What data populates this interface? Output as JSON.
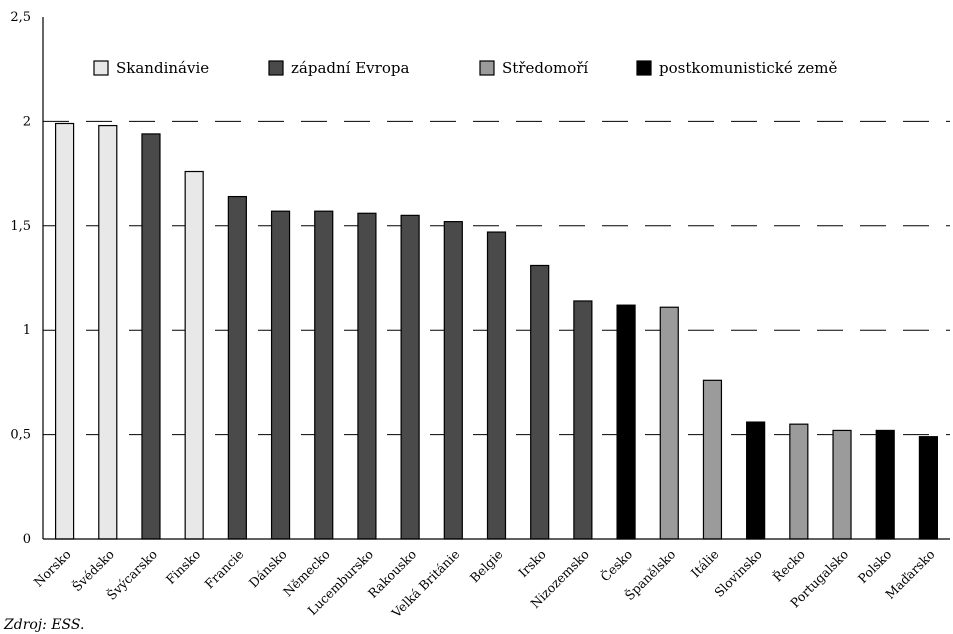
{
  "chart_data": {
    "type": "bar",
    "title": "",
    "xlabel": "",
    "ylabel": "",
    "ylim": [
      0,
      2.5
    ],
    "yticks": [
      {
        "value": 0,
        "label": "0"
      },
      {
        "value": 0.5,
        "label": "0,5"
      },
      {
        "value": 1,
        "label": "1"
      },
      {
        "value": 1.5,
        "label": "1,5"
      },
      {
        "value": 2,
        "label": "2"
      },
      {
        "value": 2.5,
        "label": "2,5"
      }
    ],
    "grid": "horizontal dashed",
    "legend_position": "top",
    "groups": [
      {
        "key": "scand",
        "name": "Skandinávie",
        "color": "#e8e8e8"
      },
      {
        "key": "west",
        "name": "západní Evropa",
        "color": "#4a4a4a"
      },
      {
        "key": "med",
        "name": "Středomoří",
        "color": "#9b9b9b"
      },
      {
        "key": "post",
        "name": "postkomunistické země",
        "color": "#000000"
      }
    ],
    "categories": [
      "Norsko",
      "Švédsko",
      "Švýcarsko",
      "Finsko",
      "Francie",
      "Dánsko",
      "Německo",
      "Lucembursko",
      "Rakousko",
      "Velká Británie",
      "Belgie",
      "Irsko",
      "Nizozemsko",
      "Česko",
      "Španělsko",
      "Itálie",
      "Slovinsko",
      "Řecko",
      "Portugalsko",
      "Polsko",
      "Maďarsko"
    ],
    "values": [
      1.99,
      1.98,
      1.94,
      1.76,
      1.64,
      1.57,
      1.57,
      1.56,
      1.55,
      1.52,
      1.47,
      1.31,
      1.14,
      1.12,
      1.11,
      0.76,
      0.56,
      0.55,
      0.52,
      0.52,
      0.49
    ],
    "bar_groups": [
      "scand",
      "scand",
      "west",
      "scand",
      "west",
      "west",
      "west",
      "west",
      "west",
      "west",
      "west",
      "west",
      "west",
      "post",
      "med",
      "med",
      "post",
      "med",
      "med",
      "post",
      "post"
    ]
  },
  "source_text": "Zdroj: ESS."
}
